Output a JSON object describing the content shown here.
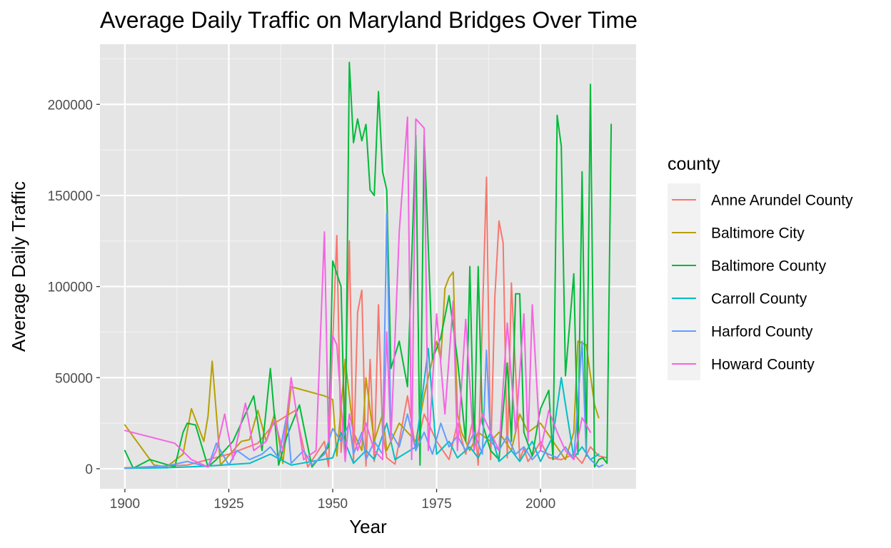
{
  "chart_data": {
    "type": "line",
    "title": "Average Daily Traffic on Maryland Bridges Over Time",
    "xlabel": "Year",
    "ylabel": "Average Daily Traffic",
    "xlim": [
      1894,
      2023
    ],
    "ylim": [
      -11000,
      233000
    ],
    "x_ticks": [
      1900,
      1925,
      1950,
      1975,
      2000
    ],
    "x_tick_labels": [
      "1900",
      "1925",
      "1950",
      "1975",
      "2000"
    ],
    "y_ticks": [
      0,
      50000,
      100000,
      150000,
      200000
    ],
    "y_tick_labels": [
      "0",
      "50000",
      "100000",
      "150000",
      "200000"
    ],
    "grid": true,
    "panel_background": "#e5e5e5",
    "legend": {
      "title": "county",
      "position": "right"
    },
    "series": [
      {
        "name": "Anne Arundel County",
        "color": "#f8766d",
        "x": [
          1900,
          1915,
          1925,
          1932,
          1936,
          1941,
          1944,
          1948,
          1949,
          1950,
          1951,
          1952,
          1953,
          1954,
          1955,
          1956,
          1957,
          1958,
          1959,
          1960,
          1961,
          1962,
          1963,
          1965,
          1968,
          1970,
          1972,
          1975,
          1978,
          1980,
          1982,
          1984,
          1985,
          1987,
          1988,
          1989,
          1990,
          1991,
          1992,
          1993,
          1995,
          1996,
          1997,
          1998,
          2000,
          2002,
          2005,
          2008,
          2010,
          2012,
          2014,
          2016
        ],
        "y": [
          500,
          2000,
          8000,
          14000,
          25000,
          32000,
          1000,
          15000,
          1200,
          70000,
          128000,
          9000,
          40000,
          125000,
          3000,
          86000,
          98000,
          1500,
          60000,
          4000,
          90000,
          20000,
          6000,
          2500,
          40000,
          10000,
          30000,
          15000,
          5000,
          25000,
          8000,
          30000,
          2000,
          160000,
          5000,
          94000,
          136000,
          124000,
          6000,
          102000,
          5000,
          11000,
          4000,
          7000,
          15000,
          6000,
          5000,
          8000,
          3000,
          12000,
          7000,
          6000
        ]
      },
      {
        "name": "Baltimore City",
        "color": "#b79f00",
        "x": [
          1900,
          1907,
          1910,
          1914,
          1916,
          1919,
          1920,
          1921,
          1923,
          1928,
          1930,
          1932,
          1934,
          1936,
          1938,
          1940,
          1948,
          1950,
          1951,
          1953,
          1955,
          1957,
          1958,
          1960,
          1962,
          1963,
          1966,
          1970,
          1972,
          1975,
          1976,
          1977,
          1978,
          1979,
          1980,
          1981,
          1983,
          1985,
          1988,
          1990,
          1993,
          1995,
          1997,
          2000,
          2003,
          2006,
          2008,
          2009,
          2011,
          2013,
          2014
        ],
        "y": [
          24000,
          2000,
          1000,
          8000,
          33000,
          15000,
          29000,
          59000,
          2000,
          15000,
          16000,
          32000,
          15000,
          30000,
          3000,
          45000,
          40000,
          38000,
          7000,
          60000,
          20000,
          10000,
          50000,
          15000,
          30000,
          10000,
          25000,
          15000,
          40000,
          70000,
          60000,
          99000,
          105000,
          108000,
          30000,
          20000,
          10000,
          20000,
          15000,
          20000,
          10000,
          30000,
          20000,
          25000,
          15000,
          5000,
          20000,
          70000,
          68000,
          35000,
          28000
        ]
      },
      {
        "name": "Baltimore County",
        "color": "#00ba38",
        "x": [
          1900,
          1902,
          1906,
          1912,
          1914,
          1915,
          1917,
          1920,
          1922,
          1926,
          1931,
          1933,
          1935,
          1937,
          1939,
          1942,
          1945,
          1949,
          1950,
          1952,
          1953,
          1954,
          1955,
          1956,
          1957,
          1958,
          1959,
          1960,
          1961,
          1962,
          1963,
          1964,
          1966,
          1968,
          1970,
          1971,
          1972,
          1974,
          1976,
          1978,
          1980,
          1982,
          1983,
          1984,
          1985,
          1986,
          1988,
          1990,
          1992,
          1993,
          1994,
          1995,
          1996,
          1998,
          2000,
          2002,
          2003,
          2004,
          2005,
          2006,
          2008,
          2009,
          2010,
          2011,
          2012,
          2013,
          2014,
          2015,
          2016,
          2017
        ],
        "y": [
          10000,
          300,
          5000,
          1000,
          20000,
          25000,
          24000,
          1000,
          5000,
          15000,
          40000,
          10000,
          55000,
          2000,
          18000,
          35000,
          1000,
          12000,
          114000,
          100000,
          6000,
          223000,
          179000,
          192000,
          180000,
          189000,
          153000,
          150000,
          207000,
          163000,
          153000,
          55000,
          70000,
          45000,
          183000,
          2000,
          183000,
          60000,
          72000,
          95000,
          60000,
          15000,
          111000,
          10000,
          111000,
          25000,
          10000,
          5000,
          58000,
          15000,
          96000,
          96000,
          20000,
          7000,
          33000,
          43000,
          5000,
          194000,
          177000,
          51000,
          107000,
          8000,
          163000,
          7000,
          211000,
          1000,
          5000,
          6000,
          3000,
          189000
        ]
      },
      {
        "name": "Carroll County",
        "color": "#00bfc4",
        "x": [
          1900,
          1910,
          1920,
          1930,
          1935,
          1940,
          1945,
          1950,
          1952,
          1955,
          1958,
          1960,
          1963,
          1965,
          1970,
          1973,
          1975,
          1978,
          1980,
          1983,
          1985,
          1988,
          1990,
          1993,
          1995,
          1998,
          2000,
          2003,
          2005,
          2008,
          2010,
          2012,
          2014
        ],
        "y": [
          200,
          500,
          1500,
          3000,
          8000,
          2000,
          4000,
          6000,
          20000,
          3000,
          10000,
          5000,
          25000,
          5000,
          12000,
          66000,
          8000,
          15000,
          6000,
          12000,
          6000,
          20000,
          4000,
          10000,
          4000,
          15000,
          4000,
          18000,
          50000,
          6000,
          12000,
          5000,
          8000
        ]
      },
      {
        "name": "Harford County",
        "color": "#619cff",
        "x": [
          1900,
          1910,
          1915,
          1920,
          1922,
          1925,
          1927,
          1930,
          1933,
          1935,
          1937,
          1939,
          1940,
          1943,
          1945,
          1948,
          1950,
          1952,
          1954,
          1955,
          1957,
          1958,
          1960,
          1962,
          1963,
          1964,
          1966,
          1968,
          1970,
          1972,
          1974,
          1976,
          1978,
          1980,
          1982,
          1984,
          1986,
          1987,
          1988,
          1990,
          1992,
          1994,
          1996,
          1998,
          2000,
          2002,
          2004,
          2006,
          2008,
          2010,
          2011,
          2012,
          2013,
          2014,
          2015
        ],
        "y": [
          300,
          1500,
          4000,
          1000,
          14000,
          2000,
          10000,
          5000,
          8000,
          12000,
          6000,
          30000,
          3000,
          10000,
          2000,
          8000,
          22000,
          15000,
          25000,
          8000,
          20000,
          5000,
          15000,
          8000,
          140000,
          20000,
          12000,
          30000,
          10000,
          20000,
          8000,
          25000,
          12000,
          18000,
          10000,
          20000,
          8000,
          65000,
          15000,
          10000,
          18000,
          8000,
          12000,
          5000,
          10000,
          8000,
          6000,
          12000,
          5000,
          70000,
          8000,
          5000,
          3000,
          1000,
          2000
        ]
      },
      {
        "name": "Howard County",
        "color": "#f564e3",
        "x": [
          1900,
          1912,
          1916,
          1920,
          1922,
          1924,
          1926,
          1929,
          1931,
          1934,
          1936,
          1938,
          1940,
          1943,
          1946,
          1948,
          1949,
          1950,
          1951,
          1953,
          1954,
          1956,
          1958,
          1960,
          1962,
          1963,
          1964,
          1966,
          1968,
          1969,
          1970,
          1972,
          1973,
          1975,
          1977,
          1979,
          1980,
          1982,
          1984,
          1986,
          1988,
          1990,
          1992,
          1994,
          1996,
          1997,
          1998,
          2000,
          2002,
          2004,
          2006,
          2008,
          2010,
          2012
        ],
        "y": [
          21000,
          14000,
          5000,
          1000,
          10000,
          30000,
          5000,
          36000,
          10000,
          15000,
          27000,
          10000,
          50000,
          5000,
          10000,
          130000,
          15000,
          73000,
          68000,
          4000,
          30000,
          10000,
          25000,
          10000,
          5000,
          75000,
          15000,
          130000,
          193000,
          5000,
          192000,
          187000,
          10000,
          85000,
          30000,
          92000,
          10000,
          82000,
          10000,
          30000,
          20000,
          10000,
          80000,
          20000,
          85000,
          15000,
          90000,
          10000,
          32000,
          20000,
          10000,
          5000,
          28000,
          20000
        ]
      }
    ]
  }
}
